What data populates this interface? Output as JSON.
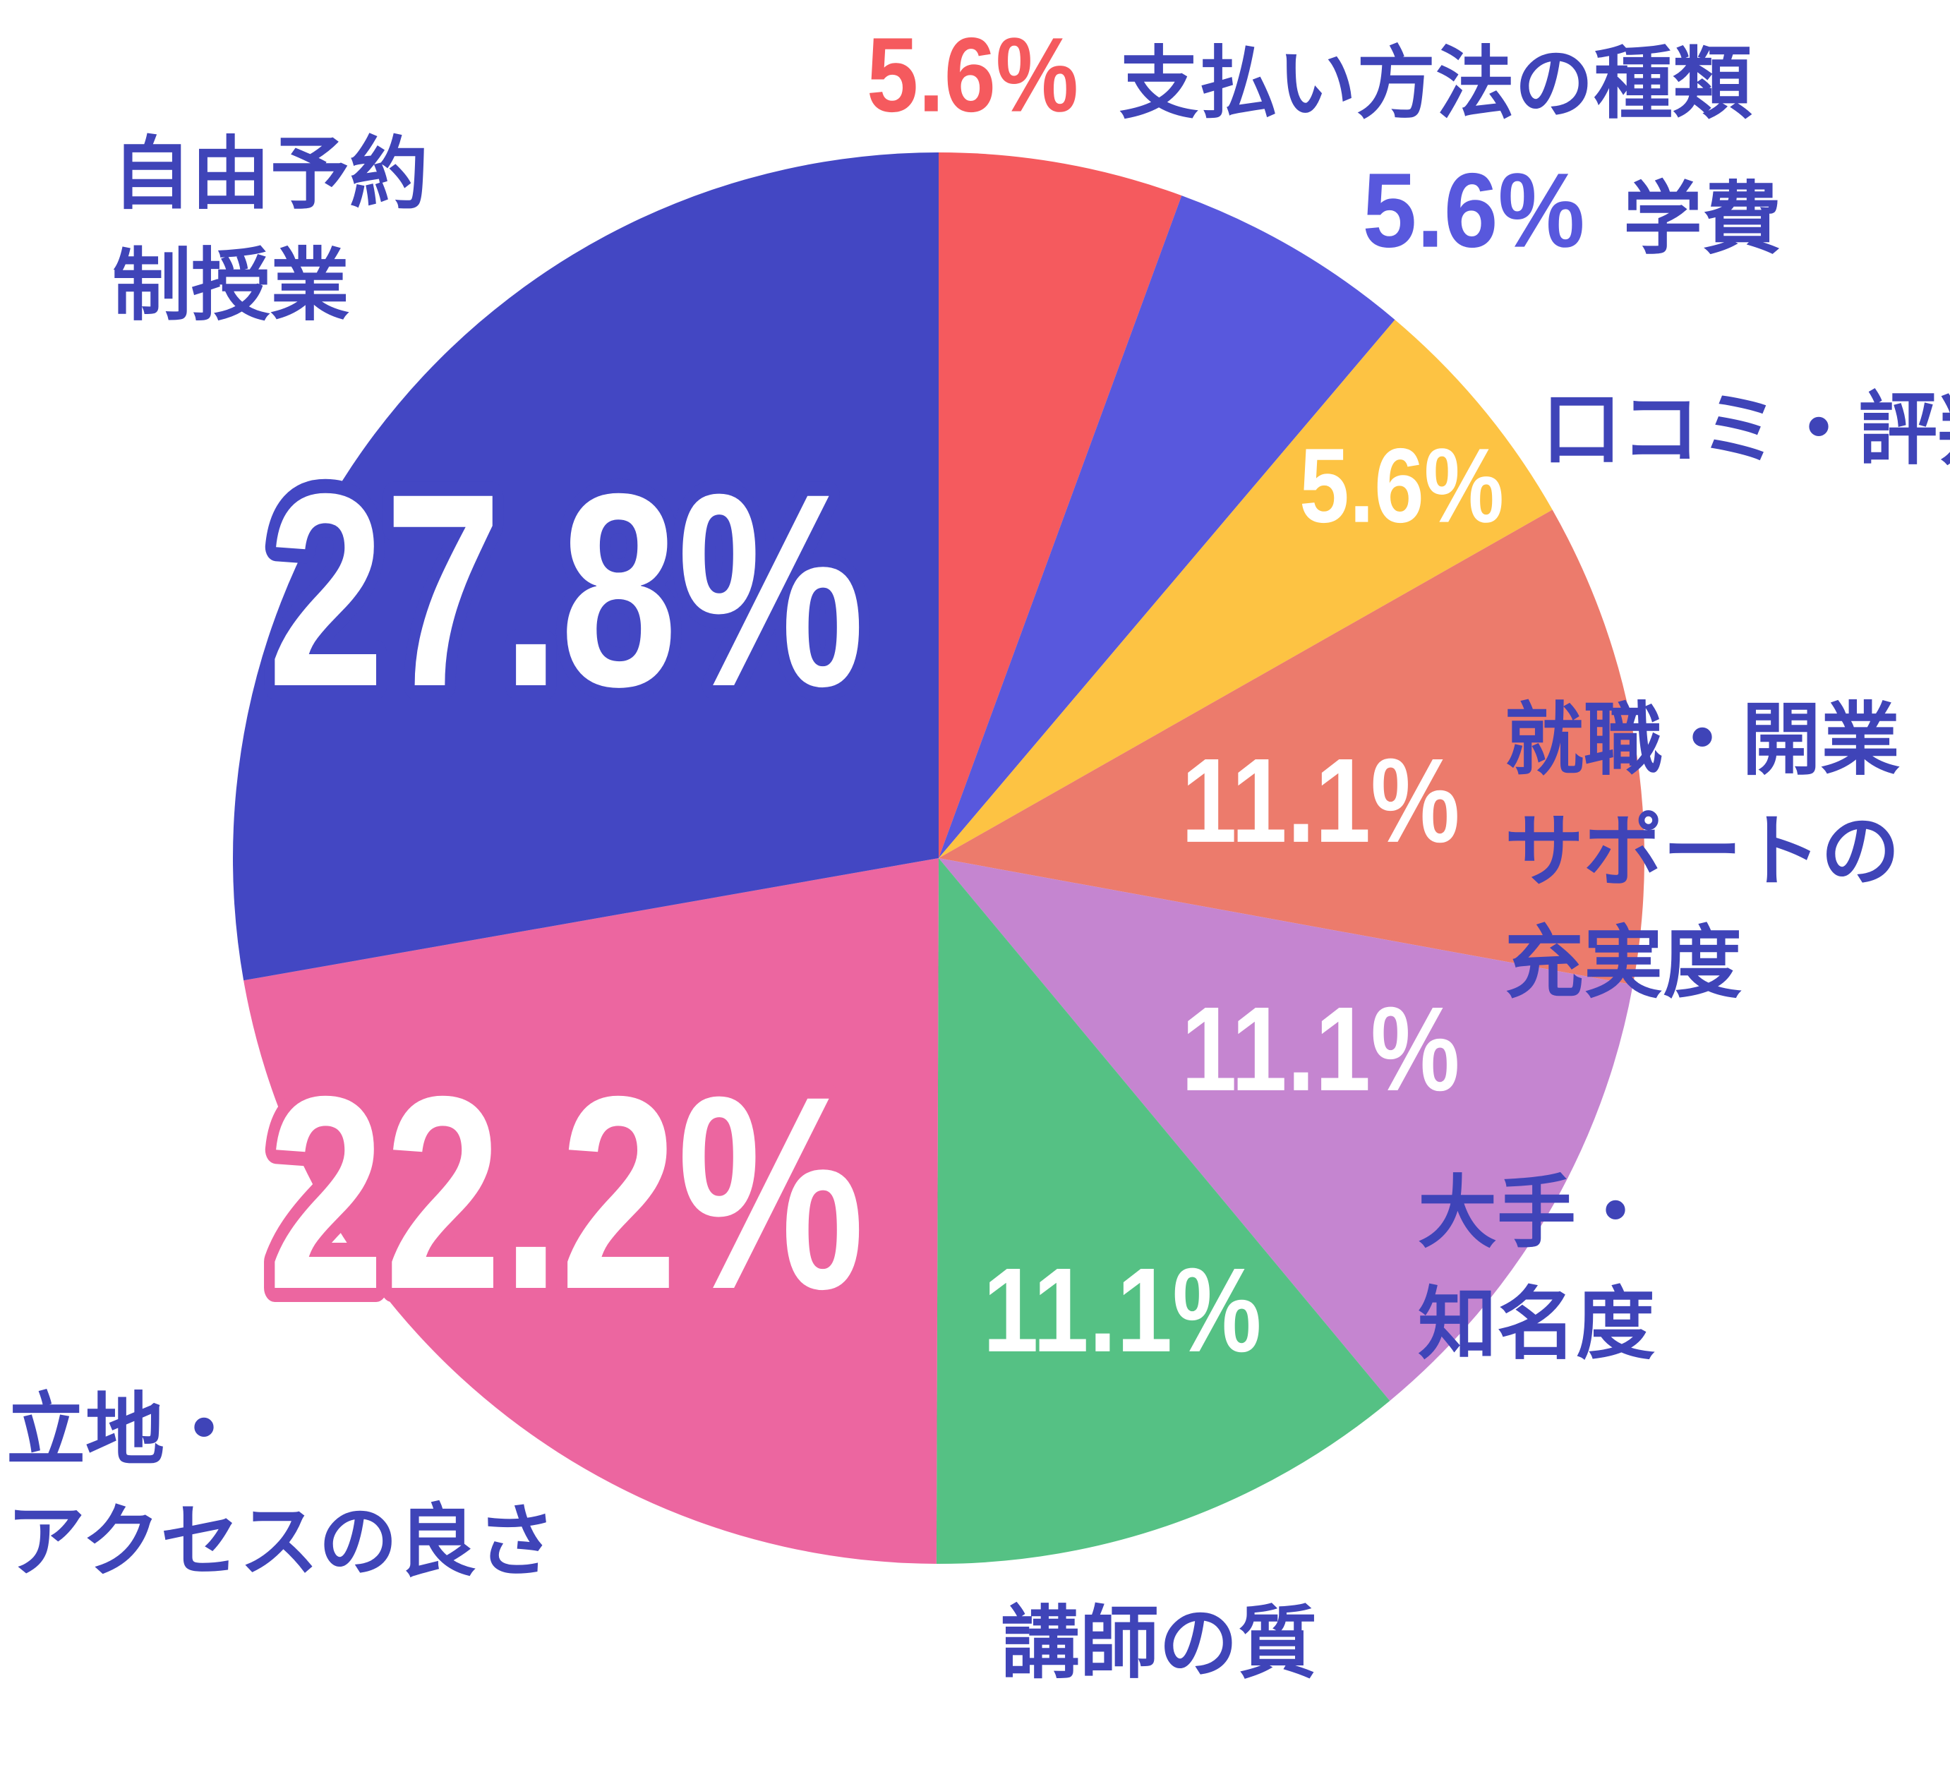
{
  "chart_data": {
    "type": "pie",
    "categories": [
      "支払い方法の種類",
      "学費",
      "口コミ・評判",
      "就職・開業\nサポートの\n充実度",
      "大手・\n知名度",
      "講師の質",
      "立地・\nアクセスの良さ",
      "自由予約\n制授業"
    ],
    "values": [
      5.6,
      5.6,
      5.6,
      11.1,
      11.1,
      11.1,
      22.2,
      27.8
    ],
    "value_labels": [
      "5.6%",
      "5.6%",
      "5.6%",
      "11.1%",
      "11.1%",
      "11.1%",
      "22.2%",
      "27.8%"
    ],
    "colors": [
      "#f55a5e",
      "#5858dd",
      "#fdc343",
      "#ec7b6c",
      "#c585d0",
      "#55c184",
      "#ec66a0",
      "#4347c3"
    ]
  }
}
